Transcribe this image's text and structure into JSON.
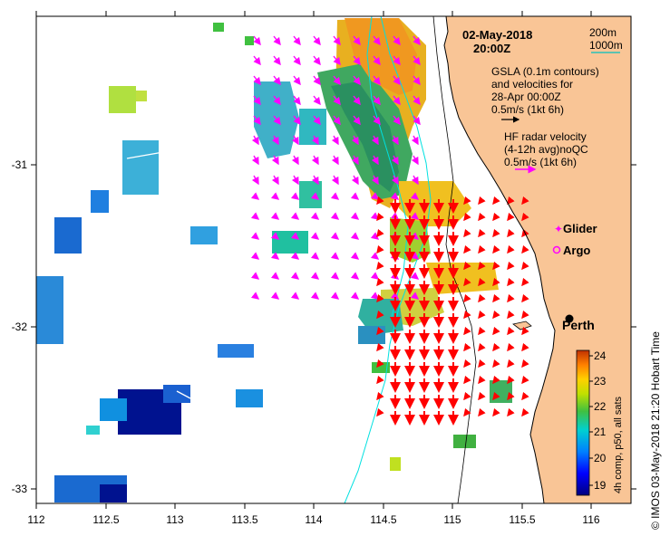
{
  "map": {
    "date_title": "02-May-2018",
    "time_title": "20:00Z",
    "scale_200": "200m",
    "scale_1000": "1000m",
    "gsla_line1": "GSLA (0.1m contours)",
    "gsla_line2": "and velocities for",
    "gsla_line3": "28-Apr 00:00Z",
    "gsla_line4": "0.5m/s (1kt 6h)",
    "hf_line1": "HF radar velocity",
    "hf_line2": "(4-12h avg)noQC",
    "hf_line3": "0.5m/s (1kt 6h)",
    "legend_glider": "Glider",
    "legend_argo": "Argo",
    "city": "Perth",
    "colorbar_label": "4h comp, p50, all sats",
    "credit": "© IMOS 03-May-2018 21:20 Hobart Time",
    "x_ticks": [
      "112",
      "112.5",
      "113",
      "113.5",
      "114",
      "114.5",
      "115",
      "115.5",
      "116"
    ],
    "y_ticks": [
      "-31",
      "-32",
      "-33"
    ],
    "colorbar_ticks": [
      "19",
      "20",
      "21",
      "22",
      "23",
      "24"
    ],
    "colors": {
      "land": "#f9c596",
      "glider": "#ff00ff",
      "argo": "#ff00ff",
      "gsla_arrow": "#ff00ff",
      "hf_arrow": "#ff0000",
      "isobath_200": "#000000",
      "isobath_1000": "#00ffff"
    }
  }
}
